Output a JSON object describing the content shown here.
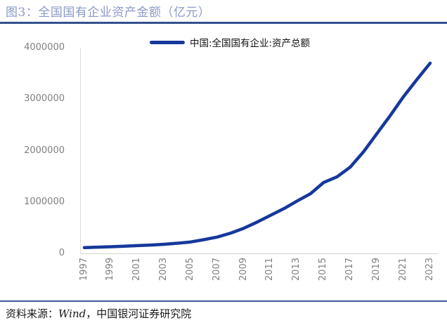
{
  "figure": {
    "title": "图3：全国国有企业资产金额（亿元）",
    "source_prefix": "资料来源：",
    "source_wind": "Wind",
    "source_suffix": "，中国银河证券研究院"
  },
  "legend": {
    "label": "中国:全国国有企业:资产总额"
  },
  "colors": {
    "line": "#16389C",
    "title_text": "#8A9AC8",
    "rule_top": "#33508E",
    "rule_bottom": "#3D5A98",
    "tick_text": "#7F7F7F",
    "plot_border": "#D9D9D9",
    "legend_text": "#111111"
  },
  "chart_data": {
    "type": "line",
    "title": "中国:全国国有企业:资产总额",
    "unit": "亿元",
    "xlabel": "",
    "ylabel": "",
    "grid": false,
    "legend_position": "top-center",
    "ylim": [
      0,
      4000000
    ],
    "y_ticks": [
      0,
      1000000,
      2000000,
      3000000,
      4000000
    ],
    "y_tick_labels": [
      "0",
      "1000000",
      "2000000",
      "3000000",
      "4000000"
    ],
    "x_tick_labels": [
      "1997",
      "1999",
      "2001",
      "2003",
      "2005",
      "2007",
      "2009",
      "2011",
      "2013",
      "2015",
      "2017",
      "2019",
      "2021",
      "2023"
    ],
    "x": [
      1997,
      1998,
      1999,
      2000,
      2001,
      2002,
      2003,
      2004,
      2005,
      2006,
      2007,
      2008,
      2009,
      2010,
      2011,
      2012,
      2013,
      2014,
      2015,
      2016,
      2017,
      2018,
      2019,
      2020,
      2021,
      2022,
      2023
    ],
    "series": [
      {
        "name": "中国:全国国有企业:资产总额",
        "values": [
          113000,
          121000,
          130000,
          140000,
          151000,
          163000,
          178000,
          198000,
          222000,
          268000,
          318000,
          395000,
          490000,
          610000,
          740000,
          870000,
          1020000,
          1160000,
          1380000,
          1490000,
          1680000,
          1980000,
          2330000,
          2680000,
          3050000,
          3380000,
          3700000
        ]
      }
    ]
  }
}
